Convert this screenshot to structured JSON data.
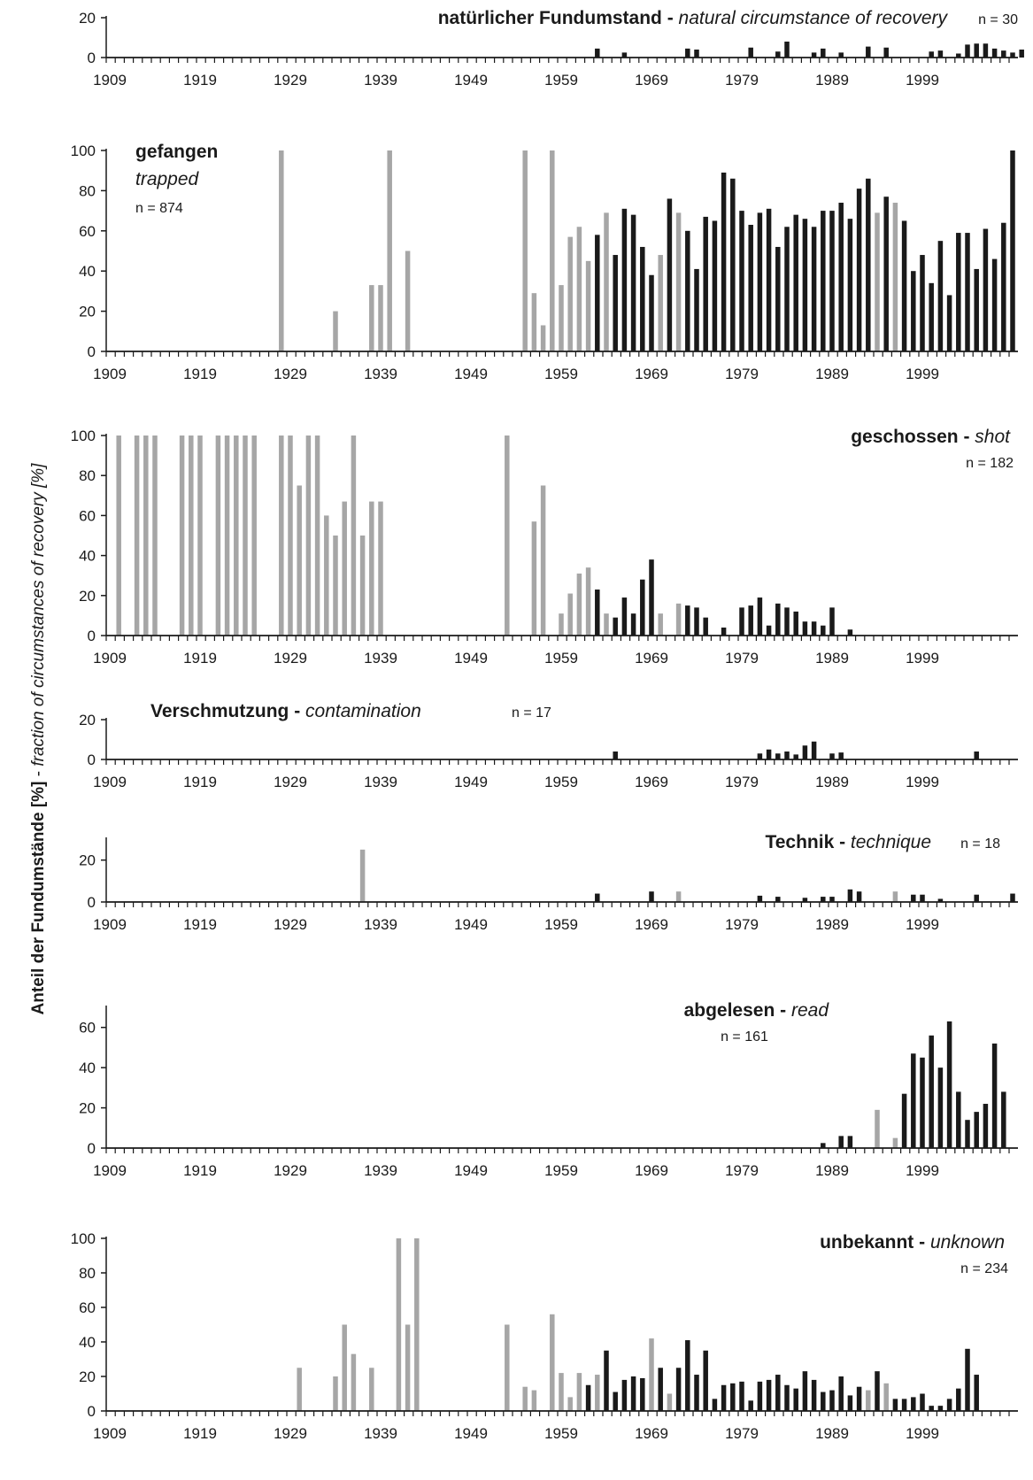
{
  "y_axis_label": {
    "bold": "Anteil der Fundumstände  [%]",
    "sep": " - ",
    "italic": "fraction of circumstances of recovery [%]"
  },
  "legend_note": "grey bars = years with low sample size; black bars = regular years",
  "colors": {
    "black": "#1a1a1a",
    "grey": "#a6a6a6"
  },
  "chart_data": [
    {
      "type": "bar",
      "id": "natural",
      "title_bold": "natürlicher Fundumstand",
      "title_sep": " - ",
      "title_italic": "natural circumstance of recovery",
      "n_label": "n = 30",
      "yticks": [
        0,
        20
      ],
      "ylim": [
        0,
        20
      ],
      "bars": [
        [
          1963,
          4.5,
          "b"
        ],
        [
          1966,
          2.5,
          "b"
        ],
        [
          1973,
          4.5,
          "b"
        ],
        [
          1974,
          4,
          "b"
        ],
        [
          1980,
          5,
          "b"
        ],
        [
          1983,
          3,
          "b"
        ],
        [
          1984,
          8,
          "b"
        ],
        [
          1987,
          2.5,
          "b"
        ],
        [
          1988,
          4.5,
          "b"
        ],
        [
          1990,
          2.5,
          "b"
        ],
        [
          1993,
          5.5,
          "b"
        ],
        [
          1995,
          5,
          "b"
        ],
        [
          2000,
          3,
          "b"
        ],
        [
          2001,
          3.5,
          "b"
        ],
        [
          2003,
          2,
          "b"
        ],
        [
          2004,
          6.5,
          "b"
        ],
        [
          2005,
          7,
          "b"
        ],
        [
          2006,
          7,
          "b"
        ],
        [
          2007,
          4.5,
          "b"
        ],
        [
          2008,
          3.5,
          "b"
        ],
        [
          2009,
          2.5,
          "b"
        ],
        [
          2010,
          4,
          "b"
        ]
      ]
    },
    {
      "type": "bar",
      "id": "trapped",
      "title_bold": "gefangen",
      "title_sep": "",
      "title_italic": "trapped",
      "n_label": "n = 874",
      "yticks": [
        0,
        20,
        40,
        60,
        80,
        100
      ],
      "ylim": [
        0,
        100
      ],
      "bars": [
        [
          1928,
          100,
          "g"
        ],
        [
          1934,
          20,
          "g"
        ],
        [
          1938,
          33,
          "g"
        ],
        [
          1939,
          33,
          "g"
        ],
        [
          1940,
          100,
          "g"
        ],
        [
          1942,
          50,
          "g"
        ],
        [
          1955,
          100,
          "g"
        ],
        [
          1956,
          29,
          "g"
        ],
        [
          1957,
          13,
          "g"
        ],
        [
          1958,
          100,
          "g"
        ],
        [
          1959,
          33,
          "g"
        ],
        [
          1960,
          57,
          "g"
        ],
        [
          1961,
          62,
          "g"
        ],
        [
          1962,
          45,
          "g"
        ],
        [
          1963,
          58,
          "b"
        ],
        [
          1964,
          69,
          "g"
        ],
        [
          1965,
          48,
          "b"
        ],
        [
          1966,
          71,
          "b"
        ],
        [
          1967,
          68,
          "b"
        ],
        [
          1968,
          52,
          "b"
        ],
        [
          1969,
          38,
          "b"
        ],
        [
          1970,
          48,
          "g"
        ],
        [
          1971,
          76,
          "b"
        ],
        [
          1972,
          69,
          "g"
        ],
        [
          1973,
          60,
          "b"
        ],
        [
          1974,
          41,
          "b"
        ],
        [
          1975,
          67,
          "b"
        ],
        [
          1976,
          65,
          "b"
        ],
        [
          1977,
          89,
          "b"
        ],
        [
          1978,
          86,
          "b"
        ],
        [
          1979,
          70,
          "b"
        ],
        [
          1980,
          63,
          "b"
        ],
        [
          1981,
          69,
          "b"
        ],
        [
          1982,
          71,
          "b"
        ],
        [
          1983,
          52,
          "b"
        ],
        [
          1984,
          62,
          "b"
        ],
        [
          1985,
          68,
          "b"
        ],
        [
          1986,
          66,
          "b"
        ],
        [
          1987,
          62,
          "b"
        ],
        [
          1988,
          70,
          "b"
        ],
        [
          1989,
          70,
          "b"
        ],
        [
          1990,
          74,
          "b"
        ],
        [
          1991,
          66,
          "b"
        ],
        [
          1992,
          81,
          "b"
        ],
        [
          1993,
          86,
          "b"
        ],
        [
          1994,
          69,
          "g"
        ],
        [
          1995,
          77,
          "b"
        ],
        [
          1996,
          74,
          "g"
        ],
        [
          1997,
          65,
          "b"
        ],
        [
          1998,
          40,
          "b"
        ],
        [
          1999,
          48,
          "b"
        ],
        [
          2000,
          34,
          "b"
        ],
        [
          2001,
          55,
          "b"
        ],
        [
          2002,
          28,
          "b"
        ],
        [
          2003,
          59,
          "b"
        ],
        [
          2004,
          59,
          "b"
        ],
        [
          2005,
          41,
          "b"
        ],
        [
          2006,
          61,
          "b"
        ],
        [
          2007,
          46,
          "b"
        ],
        [
          2008,
          64,
          "b"
        ],
        [
          2009,
          100,
          "b"
        ]
      ]
    },
    {
      "type": "bar",
      "id": "shot",
      "title_bold": "geschossen",
      "title_sep": " - ",
      "title_italic": "shot",
      "n_label": "n = 182",
      "yticks": [
        0,
        20,
        40,
        60,
        80,
        100
      ],
      "ylim": [
        0,
        100
      ],
      "bars": [
        [
          1910,
          100,
          "g"
        ],
        [
          1912,
          100,
          "g"
        ],
        [
          1913,
          100,
          "g"
        ],
        [
          1914,
          100,
          "g"
        ],
        [
          1917,
          100,
          "g"
        ],
        [
          1918,
          100,
          "g"
        ],
        [
          1919,
          100,
          "g"
        ],
        [
          1921,
          100,
          "g"
        ],
        [
          1922,
          100,
          "g"
        ],
        [
          1923,
          100,
          "g"
        ],
        [
          1924,
          100,
          "g"
        ],
        [
          1925,
          100,
          "g"
        ],
        [
          1928,
          100,
          "g"
        ],
        [
          1929,
          100,
          "g"
        ],
        [
          1930,
          75,
          "g"
        ],
        [
          1931,
          100,
          "g"
        ],
        [
          1932,
          100,
          "g"
        ],
        [
          1933,
          60,
          "g"
        ],
        [
          1934,
          50,
          "g"
        ],
        [
          1935,
          67,
          "g"
        ],
        [
          1936,
          100,
          "g"
        ],
        [
          1937,
          50,
          "g"
        ],
        [
          1938,
          67,
          "g"
        ],
        [
          1939,
          67,
          "g"
        ],
        [
          1953,
          100,
          "g"
        ],
        [
          1956,
          57,
          "g"
        ],
        [
          1957,
          75,
          "g"
        ],
        [
          1959,
          11,
          "g"
        ],
        [
          1960,
          21,
          "g"
        ],
        [
          1961,
          31,
          "g"
        ],
        [
          1962,
          34,
          "g"
        ],
        [
          1963,
          23,
          "b"
        ],
        [
          1964,
          11,
          "g"
        ],
        [
          1965,
          9,
          "b"
        ],
        [
          1966,
          19,
          "b"
        ],
        [
          1967,
          11,
          "b"
        ],
        [
          1968,
          28,
          "b"
        ],
        [
          1969,
          38,
          "b"
        ],
        [
          1970,
          11,
          "g"
        ],
        [
          1972,
          16,
          "g"
        ],
        [
          1973,
          15,
          "b"
        ],
        [
          1974,
          14,
          "b"
        ],
        [
          1975,
          9,
          "b"
        ],
        [
          1977,
          4,
          "b"
        ],
        [
          1979,
          14,
          "b"
        ],
        [
          1980,
          15,
          "b"
        ],
        [
          1981,
          19,
          "b"
        ],
        [
          1982,
          5,
          "b"
        ],
        [
          1983,
          16,
          "b"
        ],
        [
          1984,
          14,
          "b"
        ],
        [
          1985,
          12,
          "b"
        ],
        [
          1986,
          7,
          "b"
        ],
        [
          1987,
          7,
          "b"
        ],
        [
          1988,
          5,
          "b"
        ],
        [
          1989,
          14,
          "b"
        ],
        [
          1991,
          3,
          "b"
        ]
      ]
    },
    {
      "type": "bar",
      "id": "contamination",
      "title_bold": "Verschmutzung",
      "title_sep": " - ",
      "title_italic": "contamination",
      "n_label": "n = 17",
      "yticks": [
        0,
        20
      ],
      "ylim": [
        0,
        20
      ],
      "bars": [
        [
          1965,
          4,
          "b"
        ],
        [
          1981,
          3,
          "b"
        ],
        [
          1982,
          5,
          "b"
        ],
        [
          1983,
          3,
          "b"
        ],
        [
          1984,
          4,
          "b"
        ],
        [
          1985,
          2.5,
          "b"
        ],
        [
          1986,
          7,
          "b"
        ],
        [
          1987,
          9,
          "b"
        ],
        [
          1989,
          3,
          "b"
        ],
        [
          1990,
          3.5,
          "b"
        ],
        [
          2005,
          4,
          "b"
        ]
      ]
    },
    {
      "type": "bar",
      "id": "technique",
      "title_bold": "Technik",
      "title_sep": " - ",
      "title_italic": "technique",
      "n_label": "n = 18",
      "yticks": [
        0,
        20
      ],
      "ylim": [
        0,
        30
      ],
      "bars": [
        [
          1937,
          25,
          "g"
        ],
        [
          1963,
          4,
          "b"
        ],
        [
          1969,
          5,
          "b"
        ],
        [
          1972,
          5,
          "g"
        ],
        [
          1981,
          3,
          "b"
        ],
        [
          1983,
          2.5,
          "b"
        ],
        [
          1986,
          2,
          "b"
        ],
        [
          1988,
          2.5,
          "b"
        ],
        [
          1989,
          2.5,
          "b"
        ],
        [
          1991,
          6,
          "b"
        ],
        [
          1992,
          5,
          "b"
        ],
        [
          1996,
          5,
          "g"
        ],
        [
          1998,
          3.5,
          "b"
        ],
        [
          1999,
          3.5,
          "b"
        ],
        [
          2001,
          1.5,
          "b"
        ],
        [
          2005,
          3.5,
          "b"
        ],
        [
          2009,
          4,
          "b"
        ]
      ]
    },
    {
      "type": "bar",
      "id": "read",
      "title_bold": "abgelesen",
      "title_sep": " - ",
      "title_italic": "read",
      "n_label": "n = 161",
      "yticks": [
        0,
        20,
        40,
        60
      ],
      "ylim": [
        0,
        70
      ],
      "bars": [
        [
          1988,
          2.5,
          "b"
        ],
        [
          1990,
          6,
          "b"
        ],
        [
          1991,
          6,
          "b"
        ],
        [
          1994,
          19,
          "g"
        ],
        [
          1996,
          5,
          "g"
        ],
        [
          1997,
          27,
          "b"
        ],
        [
          1998,
          47,
          "b"
        ],
        [
          1999,
          45,
          "b"
        ],
        [
          2000,
          56,
          "b"
        ],
        [
          2001,
          40,
          "b"
        ],
        [
          2002,
          63,
          "b"
        ],
        [
          2003,
          28,
          "b"
        ],
        [
          2004,
          14,
          "b"
        ],
        [
          2005,
          18,
          "b"
        ],
        [
          2006,
          22,
          "b"
        ],
        [
          2007,
          52,
          "b"
        ],
        [
          2008,
          28,
          "b"
        ]
      ]
    },
    {
      "type": "bar",
      "id": "unknown",
      "title_bold": "unbekannt",
      "title_sep": " - ",
      "title_italic": "unknown",
      "n_label": "n = 234",
      "yticks": [
        0,
        20,
        40,
        60,
        80,
        100
      ],
      "ylim": [
        0,
        100
      ],
      "bars": [
        [
          1930,
          25,
          "g"
        ],
        [
          1934,
          20,
          "g"
        ],
        [
          1935,
          50,
          "g"
        ],
        [
          1936,
          33,
          "g"
        ],
        [
          1938,
          25,
          "g"
        ],
        [
          1941,
          100,
          "g"
        ],
        [
          1942,
          50,
          "g"
        ],
        [
          1943,
          100,
          "g"
        ],
        [
          1953,
          50,
          "g"
        ],
        [
          1955,
          14,
          "g"
        ],
        [
          1956,
          12,
          "g"
        ],
        [
          1958,
          56,
          "g"
        ],
        [
          1959,
          22,
          "g"
        ],
        [
          1960,
          8,
          "g"
        ],
        [
          1961,
          22,
          "g"
        ],
        [
          1962,
          15,
          "b"
        ],
        [
          1963,
          21,
          "g"
        ],
        [
          1964,
          35,
          "b"
        ],
        [
          1965,
          11,
          "b"
        ],
        [
          1966,
          18,
          "b"
        ],
        [
          1967,
          20,
          "b"
        ],
        [
          1968,
          19,
          "b"
        ],
        [
          1969,
          42,
          "g"
        ],
        [
          1970,
          25,
          "b"
        ],
        [
          1971,
          10,
          "g"
        ],
        [
          1972,
          25,
          "b"
        ],
        [
          1973,
          41,
          "b"
        ],
        [
          1974,
          21,
          "b"
        ],
        [
          1975,
          35,
          "b"
        ],
        [
          1976,
          7,
          "b"
        ],
        [
          1977,
          15,
          "b"
        ],
        [
          1978,
          16,
          "b"
        ],
        [
          1979,
          17,
          "b"
        ],
        [
          1980,
          6,
          "b"
        ],
        [
          1981,
          17,
          "b"
        ],
        [
          1982,
          18,
          "b"
        ],
        [
          1983,
          21,
          "b"
        ],
        [
          1984,
          15,
          "b"
        ],
        [
          1985,
          13,
          "b"
        ],
        [
          1986,
          23,
          "b"
        ],
        [
          1987,
          18,
          "b"
        ],
        [
          1988,
          11,
          "b"
        ],
        [
          1989,
          12,
          "b"
        ],
        [
          1990,
          20,
          "b"
        ],
        [
          1991,
          9,
          "b"
        ],
        [
          1992,
          14,
          "b"
        ],
        [
          1993,
          12,
          "g"
        ],
        [
          1994,
          23,
          "b"
        ],
        [
          1995,
          16,
          "g"
        ],
        [
          1996,
          7,
          "b"
        ],
        [
          1997,
          7,
          "b"
        ],
        [
          1998,
          8,
          "b"
        ],
        [
          1999,
          10,
          "b"
        ],
        [
          2000,
          3,
          "b"
        ],
        [
          2001,
          3,
          "b"
        ],
        [
          2002,
          7,
          "b"
        ],
        [
          2003,
          13,
          "b"
        ],
        [
          2004,
          36,
          "b"
        ],
        [
          2005,
          21,
          "b"
        ]
      ]
    }
  ],
  "x_axis": {
    "min_year": 1909,
    "max_year": 2009,
    "tick_labels": [
      "1909",
      "1919",
      "1929",
      "1939",
      "1949",
      "1959",
      "1969",
      "1979",
      "1989",
      "1999"
    ]
  }
}
